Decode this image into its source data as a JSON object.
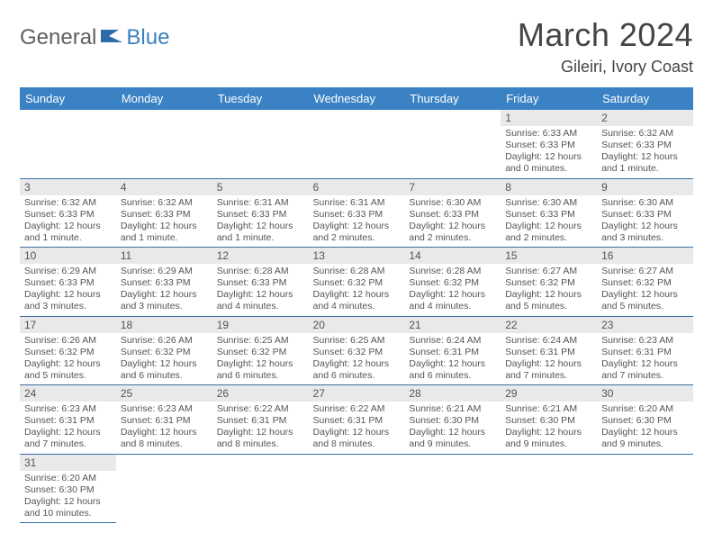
{
  "logo": {
    "part1": "General",
    "part2": "Blue"
  },
  "title": "March 2024",
  "location": "Gileiri, Ivory Coast",
  "colors": {
    "header_bg": "#3b82c4",
    "header_fg": "#ffffff",
    "daynum_bg": "#e9e9e9",
    "rule": "#3b6fa8",
    "body_text": "#555555",
    "logo_gray": "#5f5f5f",
    "logo_blue": "#3b7fc4"
  },
  "weekdays": [
    "Sunday",
    "Monday",
    "Tuesday",
    "Wednesday",
    "Thursday",
    "Friday",
    "Saturday"
  ],
  "weeks": [
    [
      null,
      null,
      null,
      null,
      null,
      {
        "n": "1",
        "sr": "Sunrise: 6:33 AM",
        "ss": "Sunset: 6:33 PM",
        "dl": "Daylight: 12 hours and 0 minutes."
      },
      {
        "n": "2",
        "sr": "Sunrise: 6:32 AM",
        "ss": "Sunset: 6:33 PM",
        "dl": "Daylight: 12 hours and 1 minute."
      }
    ],
    [
      {
        "n": "3",
        "sr": "Sunrise: 6:32 AM",
        "ss": "Sunset: 6:33 PM",
        "dl": "Daylight: 12 hours and 1 minute."
      },
      {
        "n": "4",
        "sr": "Sunrise: 6:32 AM",
        "ss": "Sunset: 6:33 PM",
        "dl": "Daylight: 12 hours and 1 minute."
      },
      {
        "n": "5",
        "sr": "Sunrise: 6:31 AM",
        "ss": "Sunset: 6:33 PM",
        "dl": "Daylight: 12 hours and 1 minute."
      },
      {
        "n": "6",
        "sr": "Sunrise: 6:31 AM",
        "ss": "Sunset: 6:33 PM",
        "dl": "Daylight: 12 hours and 2 minutes."
      },
      {
        "n": "7",
        "sr": "Sunrise: 6:30 AM",
        "ss": "Sunset: 6:33 PM",
        "dl": "Daylight: 12 hours and 2 minutes."
      },
      {
        "n": "8",
        "sr": "Sunrise: 6:30 AM",
        "ss": "Sunset: 6:33 PM",
        "dl": "Daylight: 12 hours and 2 minutes."
      },
      {
        "n": "9",
        "sr": "Sunrise: 6:30 AM",
        "ss": "Sunset: 6:33 PM",
        "dl": "Daylight: 12 hours and 3 minutes."
      }
    ],
    [
      {
        "n": "10",
        "sr": "Sunrise: 6:29 AM",
        "ss": "Sunset: 6:33 PM",
        "dl": "Daylight: 12 hours and 3 minutes."
      },
      {
        "n": "11",
        "sr": "Sunrise: 6:29 AM",
        "ss": "Sunset: 6:33 PM",
        "dl": "Daylight: 12 hours and 3 minutes."
      },
      {
        "n": "12",
        "sr": "Sunrise: 6:28 AM",
        "ss": "Sunset: 6:33 PM",
        "dl": "Daylight: 12 hours and 4 minutes."
      },
      {
        "n": "13",
        "sr": "Sunrise: 6:28 AM",
        "ss": "Sunset: 6:32 PM",
        "dl": "Daylight: 12 hours and 4 minutes."
      },
      {
        "n": "14",
        "sr": "Sunrise: 6:28 AM",
        "ss": "Sunset: 6:32 PM",
        "dl": "Daylight: 12 hours and 4 minutes."
      },
      {
        "n": "15",
        "sr": "Sunrise: 6:27 AM",
        "ss": "Sunset: 6:32 PM",
        "dl": "Daylight: 12 hours and 5 minutes."
      },
      {
        "n": "16",
        "sr": "Sunrise: 6:27 AM",
        "ss": "Sunset: 6:32 PM",
        "dl": "Daylight: 12 hours and 5 minutes."
      }
    ],
    [
      {
        "n": "17",
        "sr": "Sunrise: 6:26 AM",
        "ss": "Sunset: 6:32 PM",
        "dl": "Daylight: 12 hours and 5 minutes."
      },
      {
        "n": "18",
        "sr": "Sunrise: 6:26 AM",
        "ss": "Sunset: 6:32 PM",
        "dl": "Daylight: 12 hours and 6 minutes."
      },
      {
        "n": "19",
        "sr": "Sunrise: 6:25 AM",
        "ss": "Sunset: 6:32 PM",
        "dl": "Daylight: 12 hours and 6 minutes."
      },
      {
        "n": "20",
        "sr": "Sunrise: 6:25 AM",
        "ss": "Sunset: 6:32 PM",
        "dl": "Daylight: 12 hours and 6 minutes."
      },
      {
        "n": "21",
        "sr": "Sunrise: 6:24 AM",
        "ss": "Sunset: 6:31 PM",
        "dl": "Daylight: 12 hours and 6 minutes."
      },
      {
        "n": "22",
        "sr": "Sunrise: 6:24 AM",
        "ss": "Sunset: 6:31 PM",
        "dl": "Daylight: 12 hours and 7 minutes."
      },
      {
        "n": "23",
        "sr": "Sunrise: 6:23 AM",
        "ss": "Sunset: 6:31 PM",
        "dl": "Daylight: 12 hours and 7 minutes."
      }
    ],
    [
      {
        "n": "24",
        "sr": "Sunrise: 6:23 AM",
        "ss": "Sunset: 6:31 PM",
        "dl": "Daylight: 12 hours and 7 minutes."
      },
      {
        "n": "25",
        "sr": "Sunrise: 6:23 AM",
        "ss": "Sunset: 6:31 PM",
        "dl": "Daylight: 12 hours and 8 minutes."
      },
      {
        "n": "26",
        "sr": "Sunrise: 6:22 AM",
        "ss": "Sunset: 6:31 PM",
        "dl": "Daylight: 12 hours and 8 minutes."
      },
      {
        "n": "27",
        "sr": "Sunrise: 6:22 AM",
        "ss": "Sunset: 6:31 PM",
        "dl": "Daylight: 12 hours and 8 minutes."
      },
      {
        "n": "28",
        "sr": "Sunrise: 6:21 AM",
        "ss": "Sunset: 6:30 PM",
        "dl": "Daylight: 12 hours and 9 minutes."
      },
      {
        "n": "29",
        "sr": "Sunrise: 6:21 AM",
        "ss": "Sunset: 6:30 PM",
        "dl": "Daylight: 12 hours and 9 minutes."
      },
      {
        "n": "30",
        "sr": "Sunrise: 6:20 AM",
        "ss": "Sunset: 6:30 PM",
        "dl": "Daylight: 12 hours and 9 minutes."
      }
    ],
    [
      {
        "n": "31",
        "sr": "Sunrise: 6:20 AM",
        "ss": "Sunset: 6:30 PM",
        "dl": "Daylight: 12 hours and 10 minutes."
      },
      null,
      null,
      null,
      null,
      null,
      null
    ]
  ]
}
